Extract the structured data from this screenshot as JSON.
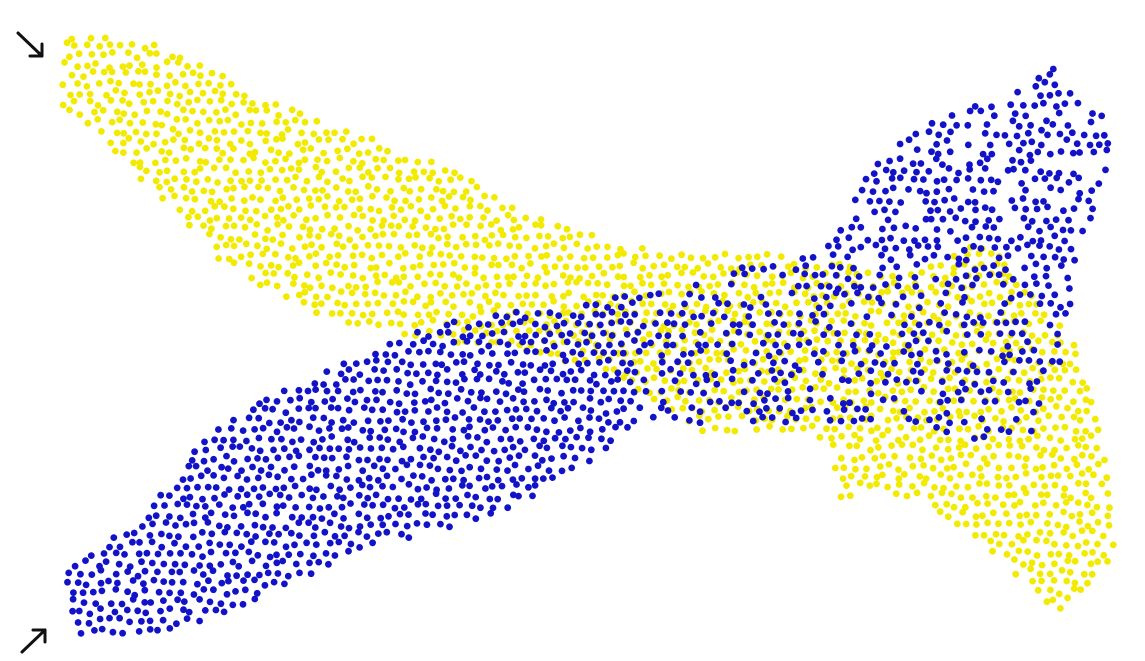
{
  "figure": {
    "background": "#ffffff",
    "arrow_color": "#111111"
  },
  "particles": {
    "description_colors": {
      "yellow": "#f2ea00",
      "blue": "#1212c8"
    },
    "groups": [
      {
        "name": "",
        "color": "#f2ea00",
        "inlet": "top-left"
      },
      {
        "name": "",
        "color": "#1212c8",
        "inlet": "bottom-left"
      }
    ]
  },
  "annotations": {
    "arrows": [
      {
        "icon": "arrow-down-right-icon",
        "position": "top-left"
      },
      {
        "icon": "arrow-up-right-icon",
        "position": "bottom-left"
      }
    ]
  }
}
